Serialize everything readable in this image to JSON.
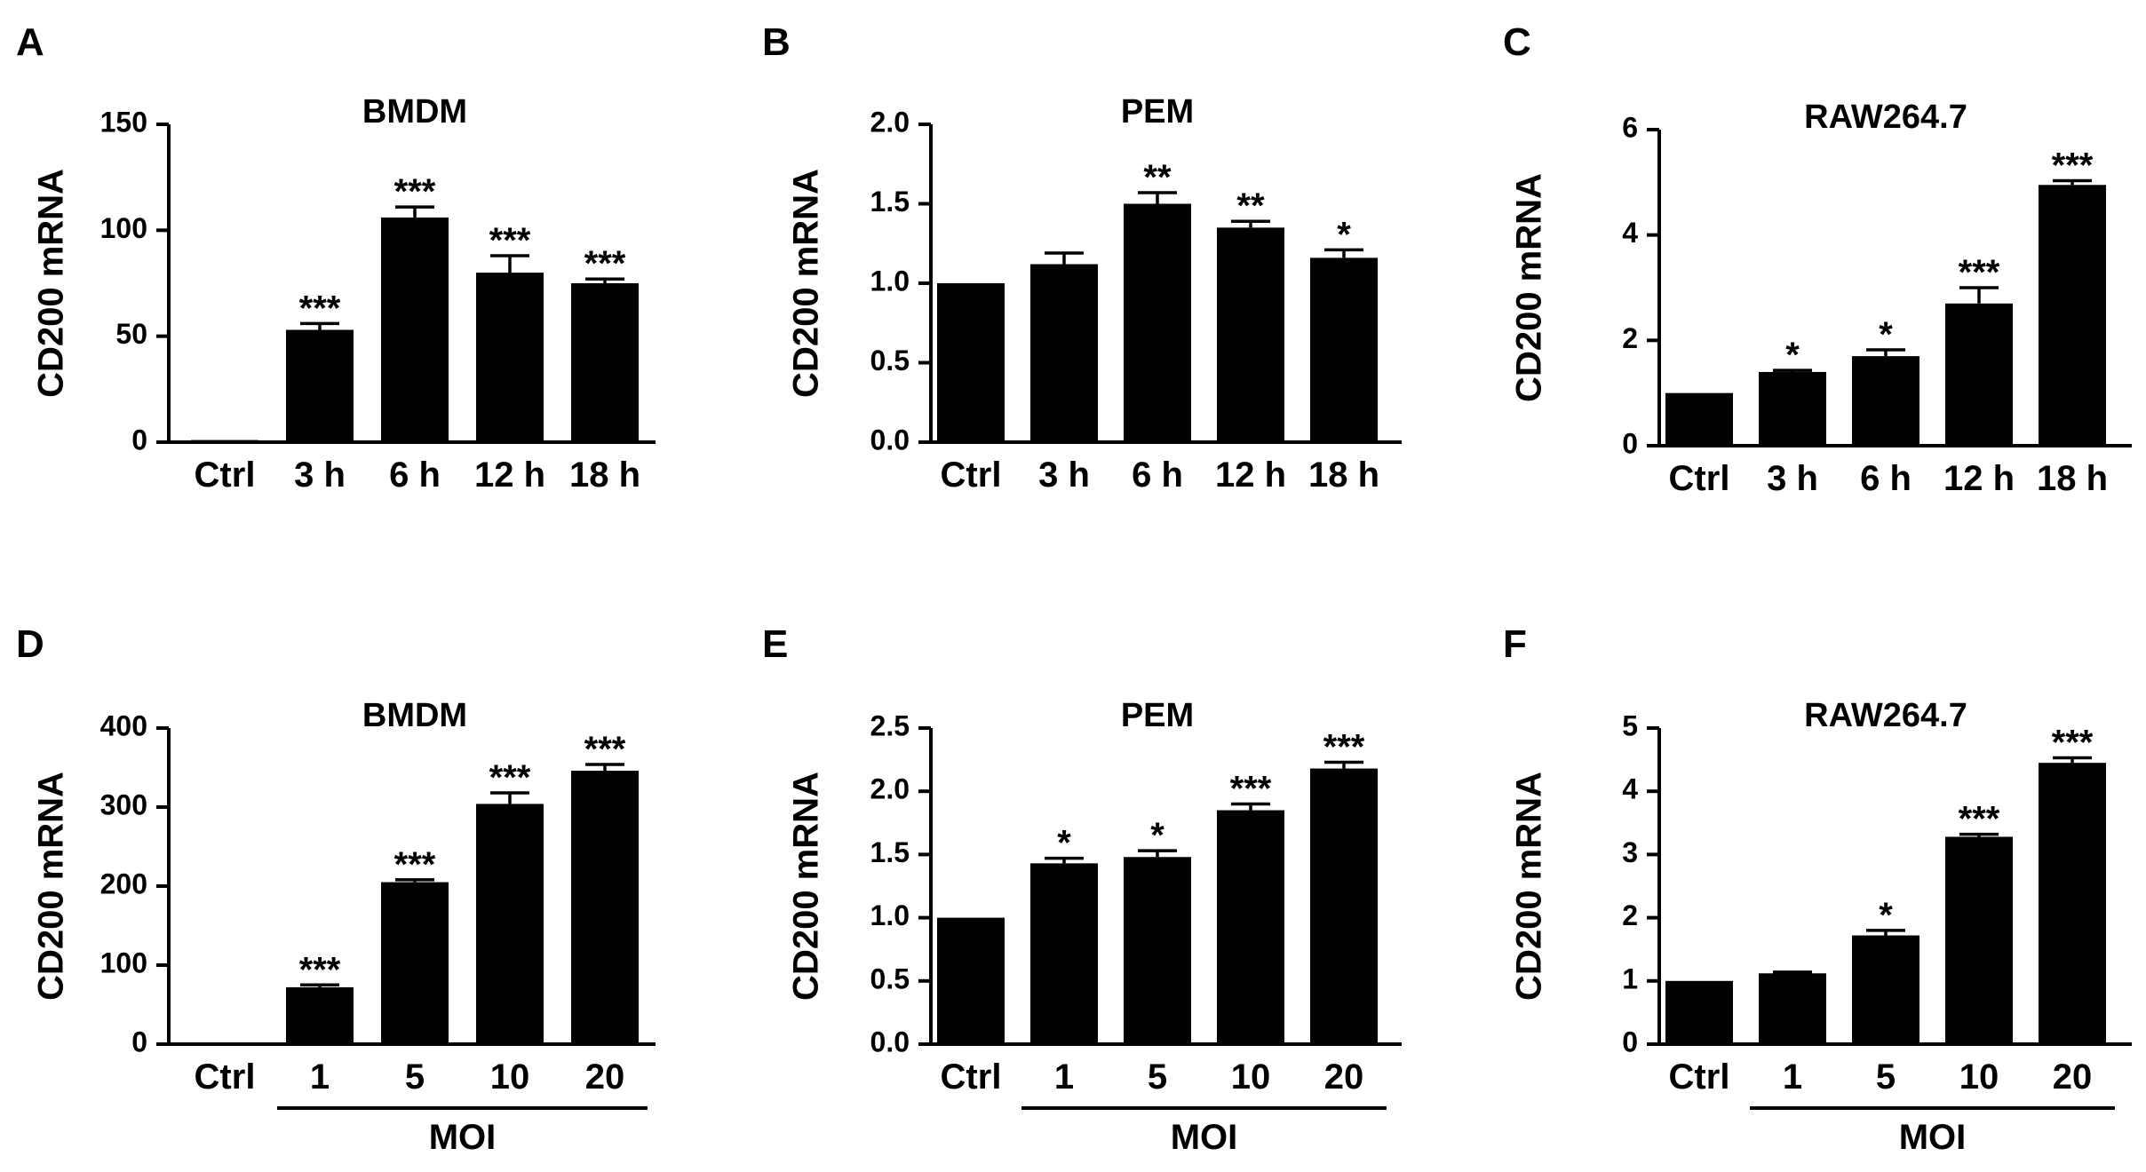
{
  "chart_data": [
    {
      "panel": "A",
      "type": "bar",
      "title": "BMDM",
      "ylabel": "CD200 mRNA",
      "xlabel": "",
      "categories": [
        "Ctrl",
        "3 h",
        "6 h",
        "12 h",
        "18 h"
      ],
      "values": [
        1,
        53,
        106,
        80,
        75
      ],
      "errors": [
        0,
        3,
        5,
        8,
        2
      ],
      "significance": [
        "",
        "***",
        "***",
        "***",
        "***"
      ],
      "ylim": [
        0,
        150
      ],
      "yticks": [
        "0",
        "50",
        "100",
        "150"
      ],
      "ytick_values": [
        0,
        50,
        100,
        150
      ]
    },
    {
      "panel": "B",
      "type": "bar",
      "title": "PEM",
      "ylabel": "CD200 mRNA",
      "xlabel": "",
      "categories": [
        "Ctrl",
        "3 h",
        "6 h",
        "12 h",
        "18 h"
      ],
      "values": [
        1.0,
        1.12,
        1.5,
        1.35,
        1.16
      ],
      "errors": [
        0,
        0.07,
        0.07,
        0.04,
        0.05
      ],
      "significance": [
        "",
        "",
        "**",
        "**",
        "*"
      ],
      "ylim": [
        0,
        2.0
      ],
      "yticks": [
        "0.0",
        "0.5",
        "1.0",
        "1.5",
        "2.0"
      ],
      "ytick_values": [
        0,
        0.5,
        1.0,
        1.5,
        2.0
      ]
    },
    {
      "panel": "C",
      "type": "bar",
      "title": "RAW264.7",
      "ylabel": "CD200 mRNA",
      "xlabel": "",
      "categories": [
        "Ctrl",
        "3 h",
        "6 h",
        "12 h",
        "18 h"
      ],
      "values": [
        1.0,
        1.4,
        1.7,
        2.7,
        4.95
      ],
      "errors": [
        0,
        0.03,
        0.12,
        0.3,
        0.08
      ],
      "significance": [
        "",
        "*",
        "*",
        "***",
        "***"
      ],
      "ylim": [
        0,
        6
      ],
      "yticks": [
        "0",
        "2",
        "4",
        "6"
      ],
      "ytick_values": [
        0,
        2,
        4,
        6
      ]
    },
    {
      "panel": "D",
      "type": "bar",
      "title": "BMDM",
      "ylabel": "CD200 mRNA",
      "xlabel": "MOI",
      "categories": [
        "Ctrl",
        "1",
        "5",
        "10",
        "20"
      ],
      "values": [
        1,
        72,
        205,
        304,
        346
      ],
      "errors": [
        0,
        3,
        3,
        14,
        8
      ],
      "significance": [
        "",
        "***",
        "***",
        "***",
        "***"
      ],
      "ylim": [
        0,
        400
      ],
      "yticks": [
        "0",
        "100",
        "200",
        "300",
        "400"
      ],
      "ytick_values": [
        0,
        100,
        200,
        300,
        400
      ]
    },
    {
      "panel": "E",
      "type": "bar",
      "title": "PEM",
      "ylabel": "CD200 mRNA",
      "xlabel": "MOI",
      "categories": [
        "Ctrl",
        "1",
        "5",
        "10",
        "20"
      ],
      "values": [
        1.0,
        1.43,
        1.48,
        1.85,
        2.18
      ],
      "errors": [
        0,
        0.04,
        0.05,
        0.05,
        0.05
      ],
      "significance": [
        "",
        "*",
        "*",
        "***",
        "***"
      ],
      "ylim": [
        0,
        2.5
      ],
      "yticks": [
        "0.0",
        "0.5",
        "1.0",
        "1.5",
        "2.0",
        "2.5"
      ],
      "ytick_values": [
        0,
        0.5,
        1.0,
        1.5,
        2.0,
        2.5
      ]
    },
    {
      "panel": "F",
      "type": "bar",
      "title": "RAW264.7",
      "ylabel": "CD200 mRNA",
      "xlabel": "MOI",
      "categories": [
        "Ctrl",
        "1",
        "5",
        "10",
        "20"
      ],
      "values": [
        1.0,
        1.12,
        1.72,
        3.28,
        4.45
      ],
      "errors": [
        0,
        0.02,
        0.08,
        0.04,
        0.08
      ],
      "significance": [
        "",
        "",
        "*",
        "***",
        "***"
      ],
      "ylim": [
        0,
        5
      ],
      "yticks": [
        "0",
        "1",
        "2",
        "3",
        "4",
        "5"
      ],
      "ytick_values": [
        0,
        1,
        2,
        3,
        4,
        5
      ]
    }
  ]
}
